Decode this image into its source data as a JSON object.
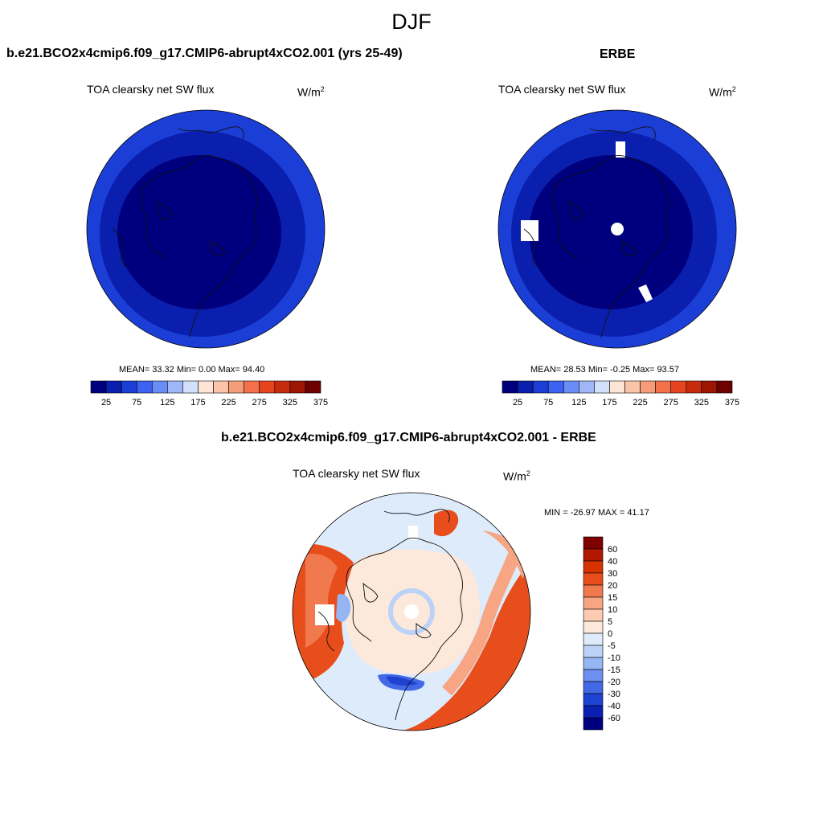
{
  "figure": {
    "title": "DJF"
  },
  "panels": {
    "left": {
      "case_title": "b.e21.BCO2x4cmip6.f09_g17.CMIP6-abrupt4xCO2.001 (yrs 25-49)",
      "variable": "TOA clearsky net SW flux",
      "units_base": "W/m",
      "units_exp": "2",
      "stats_text": "MEAN=  33.32  Min=   0.00  Max=  94.40"
    },
    "right": {
      "case_title": "ERBE",
      "variable": "TOA clearsky net SW flux",
      "units_base": "W/m",
      "units_exp": "2",
      "stats_text": "MEAN=  28.53  Min=  -0.25  Max=  93.57"
    },
    "diff": {
      "case_title": "b.e21.BCO2x4cmip6.f09_g17.CMIP6-abrupt4xCO2.001 - ERBE",
      "variable": "TOA clearsky net SW flux",
      "units_base": "W/m",
      "units_exp": "2",
      "minmax_text": "MIN = -26.97 MAX =  41.17"
    }
  },
  "chart_data": [
    {
      "type": "heatmap",
      "title": "TOA clearsky net SW flux",
      "projection": "polar-stereographic-north",
      "field_zones": [
        {
          "zone": "outer ring",
          "value": 60
        },
        {
          "zone": "middle ring",
          "value": 40
        },
        {
          "zone": "inner cap",
          "value": 20
        }
      ],
      "colorbar": {
        "orientation": "horizontal",
        "tick_labels": [
          "25",
          "75",
          "125",
          "175",
          "225",
          "275",
          "325",
          "375"
        ],
        "colors": [
          "#00007f",
          "#0a1fad",
          "#1b3fd6",
          "#3b62f0",
          "#6a8cf6",
          "#9fb6f9",
          "#d2e0fc",
          "#fde4d4",
          "#fbc3a7",
          "#f79c78",
          "#f2704a",
          "#e5441f",
          "#c72b0e",
          "#9d1503",
          "#6e0000"
        ]
      },
      "stats": {
        "mean": 33.32,
        "min": 0.0,
        "max": 94.4
      }
    },
    {
      "type": "heatmap",
      "title": "TOA clearsky net SW flux",
      "projection": "polar-stereographic-north",
      "field_zones": [
        {
          "zone": "outer ring",
          "value": 55
        },
        {
          "zone": "middle ring",
          "value": 35
        },
        {
          "zone": "inner cap",
          "value": 15
        }
      ],
      "colorbar": {
        "orientation": "horizontal",
        "tick_labels": [
          "25",
          "75",
          "125",
          "175",
          "225",
          "275",
          "325",
          "375"
        ],
        "colors": [
          "#00007f",
          "#0a1fad",
          "#1b3fd6",
          "#3b62f0",
          "#6a8cf6",
          "#9fb6f9",
          "#d2e0fc",
          "#fde4d4",
          "#fbc3a7",
          "#f79c78",
          "#f2704a",
          "#e5441f",
          "#c72b0e",
          "#9d1503",
          "#6e0000"
        ]
      },
      "stats": {
        "mean": 28.53,
        "min": -0.25,
        "max": 93.57
      }
    },
    {
      "type": "heatmap",
      "title": "TOA clearsky net SW flux",
      "projection": "polar-stereographic-north",
      "colorbar": {
        "orientation": "vertical",
        "tick_labels": [
          "60",
          "40",
          "30",
          "20",
          "15",
          "10",
          "5",
          "0",
          "-5",
          "-10",
          "-15",
          "-20",
          "-30",
          "-40",
          "-60"
        ],
        "colors": [
          "#7f0000",
          "#b21800",
          "#d83200",
          "#e84e1c",
          "#f07a4e",
          "#f7a583",
          "#fccbb2",
          "#fde9dc",
          "#ddebfb",
          "#bcd3f7",
          "#96b6f3",
          "#6d90ee",
          "#4368e6",
          "#1e42d2",
          "#0b1fb0",
          "#00007f"
        ]
      },
      "stats": {
        "min": -26.97,
        "max": 41.17
      }
    }
  ]
}
